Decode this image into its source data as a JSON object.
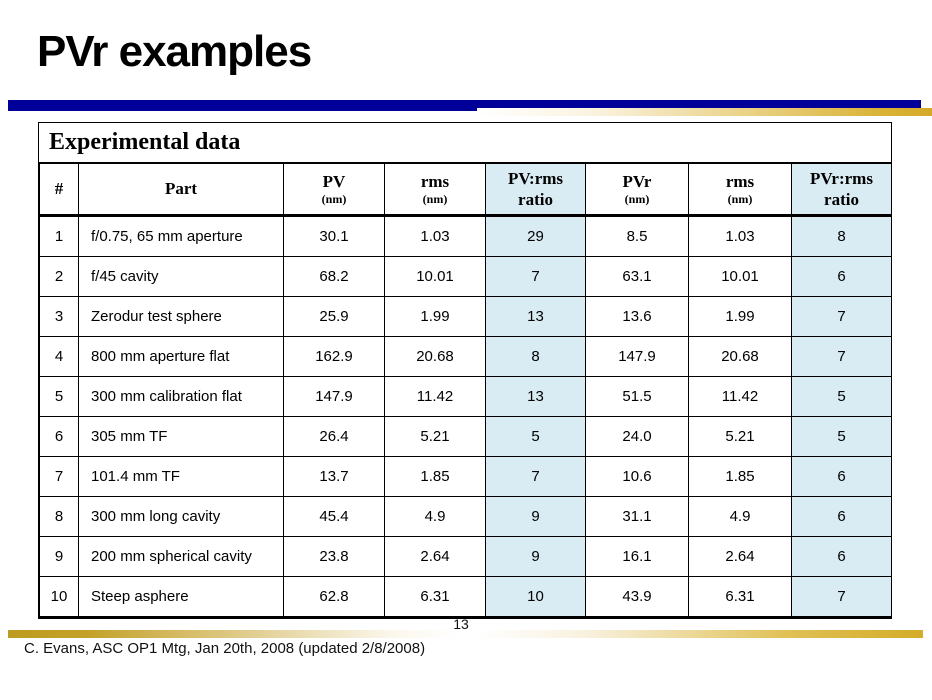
{
  "slide": {
    "title": "PVr examples",
    "page_number": "13",
    "footer": "C. Evans, ASC OP1 Mtg, Jan 20th, 2008 (updated 2/8/2008)"
  },
  "colors": {
    "navy_bar": "#000099",
    "gold_bar": "#d4a92a",
    "highlight_cell": "#d9ecf4"
  },
  "table": {
    "title": "Experimental data",
    "columns": [
      {
        "key": "num",
        "label": "#",
        "sub": "",
        "highlight": false
      },
      {
        "key": "part",
        "label": "Part",
        "sub": "",
        "highlight": false
      },
      {
        "key": "pv",
        "label": "PV",
        "sub": "(nm)",
        "highlight": false
      },
      {
        "key": "rms",
        "label": "rms",
        "sub": "(nm)",
        "highlight": false
      },
      {
        "key": "pv-rms-ratio",
        "label": "PV:rms",
        "sub": "ratio",
        "highlight": true
      },
      {
        "key": "pvr",
        "label": "PVr",
        "sub": "(nm)",
        "highlight": false
      },
      {
        "key": "rms2",
        "label": "rms",
        "sub": "(nm)",
        "highlight": false
      },
      {
        "key": "pvr-rms-ratio",
        "label": "PVr:rms",
        "sub": "ratio",
        "highlight": true
      }
    ],
    "rows": [
      [
        "1",
        "f/0.75, 65 mm aperture",
        "30.1",
        "1.03",
        "29",
        "8.5",
        "1.03",
        "8"
      ],
      [
        "2",
        "f/45 cavity",
        "68.2",
        "10.01",
        "7",
        "63.1",
        "10.01",
        "6"
      ],
      [
        "3",
        "Zerodur test sphere",
        "25.9",
        "1.99",
        "13",
        "13.6",
        "1.99",
        "7"
      ],
      [
        "4",
        "800 mm aperture flat",
        "162.9",
        "20.68",
        "8",
        "147.9",
        "20.68",
        "7"
      ],
      [
        "5",
        "300 mm calibration flat",
        "147.9",
        "11.42",
        "13",
        "51.5",
        "11.42",
        "5"
      ],
      [
        "6",
        "305 mm TF",
        "26.4",
        "5.21",
        "5",
        "24.0",
        "5.21",
        "5"
      ],
      [
        "7",
        "101.4 mm TF",
        "13.7",
        "1.85",
        "7",
        "10.6",
        "1.85",
        "6"
      ],
      [
        "8",
        "300 mm long cavity",
        "45.4",
        "4.9",
        "9",
        "31.1",
        "4.9",
        "6"
      ],
      [
        "9",
        "200 mm spherical cavity",
        "23.8",
        "2.64",
        "9",
        "16.1",
        "2.64",
        "6"
      ],
      [
        "10",
        "Steep asphere",
        "62.8",
        "6.31",
        "10",
        "43.9",
        "6.31",
        "7"
      ]
    ]
  }
}
